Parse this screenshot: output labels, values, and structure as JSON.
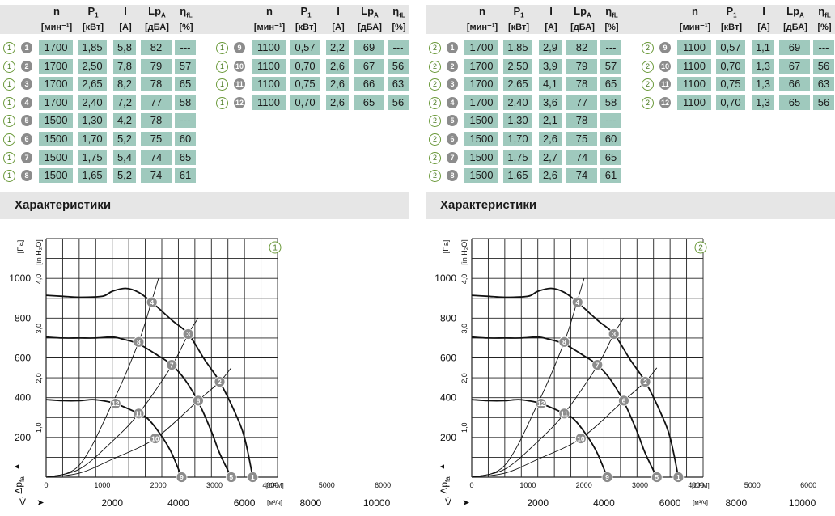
{
  "headers": [
    {
      "sym": "n",
      "sub": "",
      "unit": "[мин⁻¹]"
    },
    {
      "sym": "P",
      "sub": "1",
      "unit": "[кВт]"
    },
    {
      "sym": "I",
      "sub": "",
      "unit": "[A]"
    },
    {
      "sym": "Lp",
      "sub": "A",
      "unit": "[дБА]"
    },
    {
      "sym": "η",
      "sub": "fL",
      "unit": "[%]"
    }
  ],
  "section_title": "Характеристики",
  "axis_text": {
    "y_pa_unit": "[Па]",
    "y_inh2o_unit": "[in H₂O]",
    "y_symbol": "Δp",
    "y_symbol_sub": "fa",
    "x_symbol": "V̇",
    "x_cfm_unit": "[CFM]",
    "x_m3h_unit": "[м³/ч]",
    "up_arrow": "▲",
    "right_arrow": "➤"
  },
  "colors": {
    "cell_bg": "#9fc9bd",
    "badge_bg": "#8c8c8c",
    "circle": "#6b9a3a",
    "band": "#e6e6e6"
  },
  "panels": [
    {
      "variant": "1",
      "rows": [
        {
          "id": "1",
          "n": "1700",
          "p1": "1,85",
          "i": "5,8",
          "lpa": "82",
          "eta": "---"
        },
        {
          "id": "2",
          "n": "1700",
          "p1": "2,50",
          "i": "7,8",
          "lpa": "79",
          "eta": "57"
        },
        {
          "id": "3",
          "n": "1700",
          "p1": "2,65",
          "i": "8,2",
          "lpa": "78",
          "eta": "65"
        },
        {
          "id": "4",
          "n": "1700",
          "p1": "2,40",
          "i": "7,2",
          "lpa": "77",
          "eta": "58"
        },
        {
          "id": "5",
          "n": "1500",
          "p1": "1,30",
          "i": "4,2",
          "lpa": "78",
          "eta": "---"
        },
        {
          "id": "6",
          "n": "1500",
          "p1": "1,70",
          "i": "5,2",
          "lpa": "75",
          "eta": "60"
        },
        {
          "id": "7",
          "n": "1500",
          "p1": "1,75",
          "i": "5,4",
          "lpa": "74",
          "eta": "65"
        },
        {
          "id": "8",
          "n": "1500",
          "p1": "1,65",
          "i": "5,2",
          "lpa": "74",
          "eta": "61"
        },
        {
          "id": "9",
          "n": "1100",
          "p1": "0,57",
          "i": "2,2",
          "lpa": "69",
          "eta": "---"
        },
        {
          "id": "10",
          "n": "1100",
          "p1": "0,70",
          "i": "2,6",
          "lpa": "67",
          "eta": "56"
        },
        {
          "id": "11",
          "n": "1100",
          "p1": "0,75",
          "i": "2,6",
          "lpa": "66",
          "eta": "63"
        },
        {
          "id": "12",
          "n": "1100",
          "p1": "0,70",
          "i": "2,6",
          "lpa": "65",
          "eta": "56"
        }
      ]
    },
    {
      "variant": "2",
      "rows": [
        {
          "id": "1",
          "n": "1700",
          "p1": "1,85",
          "i": "2,9",
          "lpa": "82",
          "eta": "---"
        },
        {
          "id": "2",
          "n": "1700",
          "p1": "2,50",
          "i": "3,9",
          "lpa": "79",
          "eta": "57"
        },
        {
          "id": "3",
          "n": "1700",
          "p1": "2,65",
          "i": "4,1",
          "lpa": "78",
          "eta": "65"
        },
        {
          "id": "4",
          "n": "1700",
          "p1": "2,40",
          "i": "3,6",
          "lpa": "77",
          "eta": "58"
        },
        {
          "id": "5",
          "n": "1500",
          "p1": "1,30",
          "i": "2,1",
          "lpa": "78",
          "eta": "---"
        },
        {
          "id": "6",
          "n": "1500",
          "p1": "1,70",
          "i": "2,6",
          "lpa": "75",
          "eta": "60"
        },
        {
          "id": "7",
          "n": "1500",
          "p1": "1,75",
          "i": "2,7",
          "lpa": "74",
          "eta": "65"
        },
        {
          "id": "8",
          "n": "1500",
          "p1": "1,65",
          "i": "2,6",
          "lpa": "74",
          "eta": "61"
        },
        {
          "id": "9",
          "n": "1100",
          "p1": "0,57",
          "i": "1,1",
          "lpa": "69",
          "eta": "---"
        },
        {
          "id": "10",
          "n": "1100",
          "p1": "0,70",
          "i": "1,3",
          "lpa": "67",
          "eta": "56"
        },
        {
          "id": "11",
          "n": "1100",
          "p1": "0,75",
          "i": "1,3",
          "lpa": "66",
          "eta": "63"
        },
        {
          "id": "12",
          "n": "1100",
          "p1": "0,70",
          "i": "1,3",
          "lpa": "65",
          "eta": "56"
        }
      ]
    }
  ],
  "chart_data": {
    "type": "line",
    "x_unit": "[CFM]",
    "x_secondary_unit": "[м³/ч]",
    "y_unit": "[Па]",
    "y_secondary_unit": "[in H₂O]",
    "xlim": [
      0,
      7000
    ],
    "ylim": [
      0,
      1200
    ],
    "grid": true,
    "x_ticks": [
      0,
      1000,
      2000,
      3000,
      4000,
      5000,
      6000
    ],
    "x_secondary_ticks": [
      2000,
      4000,
      6000,
      8000,
      10000
    ],
    "y_ticks": [
      200,
      400,
      600,
      800,
      1000
    ],
    "y_secondary_ticks": [
      "1,0",
      "2,0",
      "3,0",
      "4,0"
    ],
    "speed_curves": [
      {
        "n": "1700",
        "points": [
          [
            0,
            915
          ],
          [
            500,
            910
          ],
          [
            1000,
            905
          ],
          [
            1700,
            910
          ],
          [
            2000,
            935
          ],
          [
            2400,
            950
          ],
          [
            2800,
            930
          ],
          [
            3200,
            880
          ],
          [
            3800,
            790
          ],
          [
            4300,
            720
          ],
          [
            4800,
            590
          ],
          [
            5250,
            480
          ],
          [
            5700,
            330
          ],
          [
            6000,
            200
          ],
          [
            6250,
            0
          ]
        ]
      },
      {
        "n": "1500",
        "points": [
          [
            0,
            705
          ],
          [
            500,
            700
          ],
          [
            1000,
            700
          ],
          [
            1500,
            700
          ],
          [
            2000,
            705
          ],
          [
            2300,
            695
          ],
          [
            2800,
            670
          ],
          [
            3400,
            610
          ],
          [
            3800,
            565
          ],
          [
            4200,
            490
          ],
          [
            4600,
            380
          ],
          [
            5000,
            230
          ],
          [
            5250,
            120
          ],
          [
            5600,
            0
          ]
        ]
      },
      {
        "n": "1100",
        "points": [
          [
            0,
            390
          ],
          [
            500,
            385
          ],
          [
            1000,
            385
          ],
          [
            1400,
            390
          ],
          [
            1700,
            385
          ],
          [
            2100,
            370
          ],
          [
            2800,
            320
          ],
          [
            3100,
            290
          ],
          [
            3500,
            205
          ],
          [
            3800,
            120
          ],
          [
            4100,
            0
          ]
        ]
      }
    ],
    "system_lines": [
      {
        "through": "12-8-4",
        "points": [
          [
            0,
            0
          ],
          [
            1000,
            60
          ],
          [
            2000,
            370
          ],
          [
            2800,
            680
          ],
          [
            3200,
            890
          ],
          [
            3400,
            1000
          ]
        ]
      },
      {
        "through": "11-7-3",
        "points": [
          [
            0,
            0
          ],
          [
            1000,
            40
          ],
          [
            2000,
            180
          ],
          [
            2800,
            320
          ],
          [
            3800,
            560
          ],
          [
            4300,
            720
          ],
          [
            4600,
            800
          ]
        ]
      },
      {
        "through": "10-6-2",
        "points": [
          [
            0,
            0
          ],
          [
            1000,
            20
          ],
          [
            2000,
            90
          ],
          [
            3300,
            195
          ],
          [
            4600,
            385
          ],
          [
            5250,
            480
          ],
          [
            5600,
            550
          ]
        ]
      }
    ],
    "operating_points": [
      {
        "id": "1",
        "x": 6250,
        "y": 0
      },
      {
        "id": "2",
        "x": 5250,
        "y": 480
      },
      {
        "id": "3",
        "x": 4300,
        "y": 720
      },
      {
        "id": "4",
        "x": 3200,
        "y": 880
      },
      {
        "id": "5",
        "x": 5600,
        "y": 0
      },
      {
        "id": "6",
        "x": 4600,
        "y": 385
      },
      {
        "id": "7",
        "x": 3800,
        "y": 565
      },
      {
        "id": "8",
        "x": 2800,
        "y": 680
      },
      {
        "id": "9",
        "x": 4100,
        "y": 0
      },
      {
        "id": "10",
        "x": 3300,
        "y": 195
      },
      {
        "id": "11",
        "x": 2800,
        "y": 320
      },
      {
        "id": "12",
        "x": 2100,
        "y": 370
      }
    ]
  }
}
